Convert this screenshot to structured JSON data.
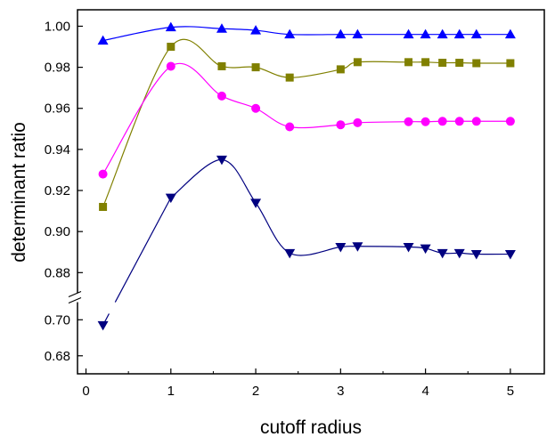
{
  "chart_data": {
    "type": "line",
    "title": "",
    "xlabel": "cutoff radius",
    "ylabel": "determinant ratio",
    "xlim": [
      -0.1,
      5.4
    ],
    "ylim_upper": [
      0.868,
      1.008
    ],
    "ylim_lower": [
      0.67,
      0.712
    ],
    "axis_break": "between 0.70 and 0.88 on y",
    "grid": false,
    "legend": "none",
    "x_ticks": [
      "0",
      "1",
      "2",
      "3",
      "4",
      "5"
    ],
    "y_ticks_upper": [
      "0.88",
      "0.90",
      "0.92",
      "0.94",
      "0.96",
      "0.98",
      "1.00"
    ],
    "y_ticks_lower": [
      "0.68",
      "0.70"
    ],
    "series": [
      {
        "color": "#0000ff",
        "marker": "triangle-up",
        "x": [
          0.2,
          1.0,
          1.6,
          2.0,
          2.4,
          3.0,
          3.2,
          3.8,
          4.0,
          4.2,
          4.4,
          4.6,
          5.0
        ],
        "y": [
          0.993,
          0.9995,
          0.9988,
          0.998,
          0.996,
          0.996,
          0.996,
          0.996,
          0.996,
          0.996,
          0.996,
          0.996,
          0.996
        ]
      },
      {
        "color": "#808000",
        "marker": "square",
        "x": [
          0.2,
          1.0,
          1.6,
          2.0,
          2.4,
          3.0,
          3.2,
          3.8,
          4.0,
          4.2,
          4.4,
          4.6,
          5.0
        ],
        "y": [
          0.912,
          0.99,
          0.9805,
          0.98,
          0.975,
          0.979,
          0.9825,
          0.9825,
          0.9825,
          0.9822,
          0.9822,
          0.982,
          0.982
        ]
      },
      {
        "color": "#ff00ff",
        "marker": "circle",
        "x": [
          0.2,
          1.0,
          1.6,
          2.0,
          2.4,
          3.0,
          3.2,
          3.8,
          4.0,
          4.2,
          4.4,
          4.6,
          5.0
        ],
        "y": [
          0.928,
          0.9805,
          0.966,
          0.96,
          0.951,
          0.952,
          0.953,
          0.9535,
          0.9535,
          0.9537,
          0.9537,
          0.9537,
          0.9537
        ]
      },
      {
        "color": "#000080",
        "marker": "triangle-down",
        "x": [
          0.2,
          1.0,
          1.6,
          2.0,
          2.4,
          3.0,
          3.2,
          3.8,
          4.0,
          4.2,
          4.4,
          4.6,
          5.0
        ],
        "y": [
          0.697,
          0.9165,
          0.935,
          0.914,
          0.8895,
          0.8925,
          0.8928,
          0.8925,
          0.8918,
          0.8895,
          0.8895,
          0.889,
          0.889
        ]
      }
    ]
  }
}
